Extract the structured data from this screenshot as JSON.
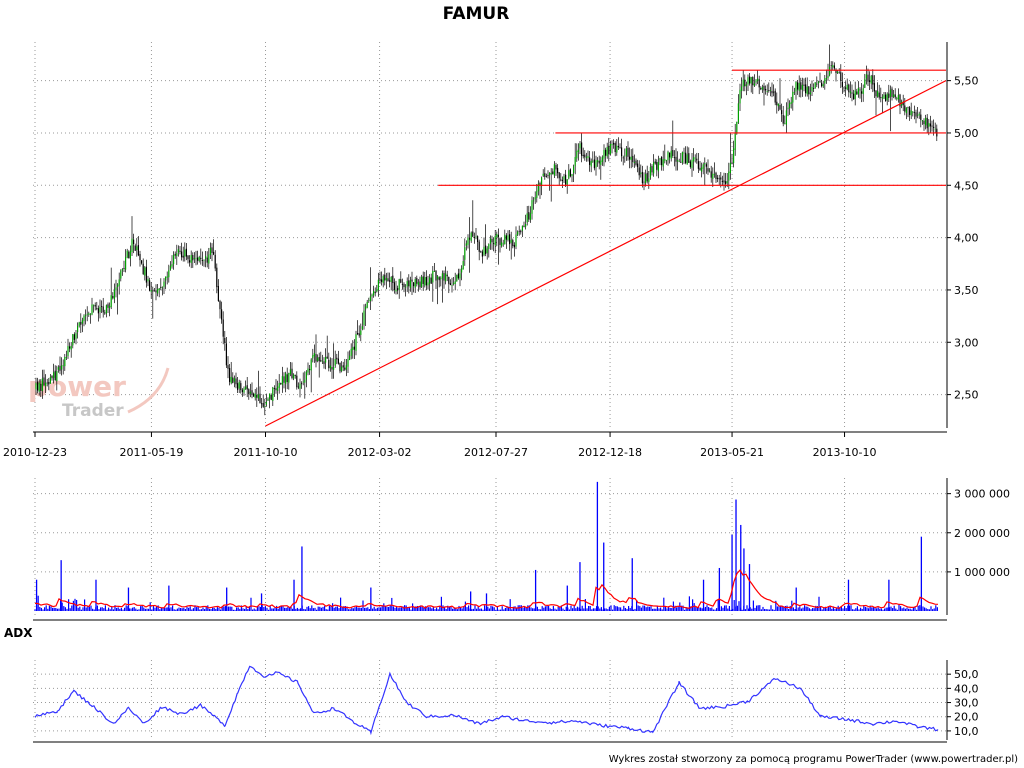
{
  "chart_data": [
    {
      "type": "candlestick",
      "title": "FAMUR",
      "xlabel": "",
      "ylabel": "",
      "x_tick_labels": [
        "2010-12-23",
        "2011-05-19",
        "2011-10-10",
        "2012-03-02",
        "2012-07-27",
        "2012-12-18",
        "2013-05-21",
        "2013-10-10"
      ],
      "y_tick_labels": [
        "2,50",
        "3,00",
        "3,50",
        "4,00",
        "4,50",
        "5,00",
        "5,50"
      ],
      "ylim": [
        2.2,
        5.85
      ],
      "grid": true,
      "price_path": [
        {
          "date": "2010-12-23",
          "close": 2.55
        },
        {
          "date": "2011-01-20",
          "close": 2.7
        },
        {
          "date": "2011-02-10",
          "close": 3.05
        },
        {
          "date": "2011-03-05",
          "close": 3.35
        },
        {
          "date": "2011-03-25",
          "close": 3.3
        },
        {
          "date": "2011-04-10",
          "close": 3.65
        },
        {
          "date": "2011-04-25",
          "close": 3.95
        },
        {
          "date": "2011-05-05",
          "close": 3.8
        },
        {
          "date": "2011-05-19",
          "close": 3.45
        },
        {
          "date": "2011-06-05",
          "close": 3.55
        },
        {
          "date": "2011-06-20",
          "close": 3.9
        },
        {
          "date": "2011-07-05",
          "close": 3.8
        },
        {
          "date": "2011-07-20",
          "close": 3.75
        },
        {
          "date": "2011-08-05",
          "close": 3.88
        },
        {
          "date": "2011-08-15",
          "close": 3.2
        },
        {
          "date": "2011-08-25",
          "close": 2.65
        },
        {
          "date": "2011-09-10",
          "close": 2.55
        },
        {
          "date": "2011-09-25",
          "close": 2.5
        },
        {
          "date": "2011-10-10",
          "close": 2.4
        },
        {
          "date": "2011-10-25",
          "close": 2.6
        },
        {
          "date": "2011-11-10",
          "close": 2.7
        },
        {
          "date": "2011-11-25",
          "close": 2.55
        },
        {
          "date": "2011-12-10",
          "close": 2.85
        },
        {
          "date": "2011-12-30",
          "close": 2.8
        },
        {
          "date": "2012-01-20",
          "close": 2.75
        },
        {
          "date": "2012-02-05",
          "close": 3.1
        },
        {
          "date": "2012-02-20",
          "close": 3.45
        },
        {
          "date": "2012-03-02",
          "close": 3.6
        },
        {
          "date": "2012-03-25",
          "close": 3.55
        },
        {
          "date": "2012-04-20",
          "close": 3.55
        },
        {
          "date": "2012-05-15",
          "close": 3.65
        },
        {
          "date": "2012-06-05",
          "close": 3.55
        },
        {
          "date": "2012-06-25",
          "close": 4.05
        },
        {
          "date": "2012-07-10",
          "close": 3.85
        },
        {
          "date": "2012-07-27",
          "close": 4.0
        },
        {
          "date": "2012-08-20",
          "close": 3.95
        },
        {
          "date": "2012-09-05",
          "close": 4.2
        },
        {
          "date": "2012-09-20",
          "close": 4.55
        },
        {
          "date": "2012-10-10",
          "close": 4.65
        },
        {
          "date": "2012-10-25",
          "close": 4.55
        },
        {
          "date": "2012-11-10",
          "close": 4.85
        },
        {
          "date": "2012-11-25",
          "close": 4.7
        },
        {
          "date": "2012-12-18",
          "close": 4.85
        },
        {
          "date": "2013-01-10",
          "close": 4.8
        },
        {
          "date": "2013-01-30",
          "close": 4.55
        },
        {
          "date": "2013-02-15",
          "close": 4.7
        },
        {
          "date": "2013-03-05",
          "close": 4.8
        },
        {
          "date": "2013-03-25",
          "close": 4.75
        },
        {
          "date": "2013-04-20",
          "close": 4.65
        },
        {
          "date": "2013-05-15",
          "close": 4.55
        },
        {
          "date": "2013-05-21",
          "close": 4.75
        },
        {
          "date": "2013-06-01",
          "close": 5.45
        },
        {
          "date": "2013-06-20",
          "close": 5.5
        },
        {
          "date": "2013-07-10",
          "close": 5.4
        },
        {
          "date": "2013-07-25",
          "close": 5.1
        },
        {
          "date": "2013-08-10",
          "close": 5.45
        },
        {
          "date": "2013-08-30",
          "close": 5.4
        },
        {
          "date": "2013-09-15",
          "close": 5.5
        },
        {
          "date": "2013-09-25",
          "close": 5.7
        },
        {
          "date": "2013-10-10",
          "close": 5.45
        },
        {
          "date": "2013-10-25",
          "close": 5.35
        },
        {
          "date": "2013-11-10",
          "close": 5.55
        },
        {
          "date": "2013-11-25",
          "close": 5.3
        },
        {
          "date": "2013-12-10",
          "close": 5.4
        },
        {
          "date": "2013-12-25",
          "close": 5.2
        },
        {
          "date": "2014-01-10",
          "close": 5.2
        },
        {
          "date": "2014-01-25",
          "close": 5.05
        },
        {
          "date": "2014-02-05",
          "close": 4.95
        }
      ],
      "horizontal_lines": [
        {
          "value": 5.6,
          "from": "2013-05-21",
          "to": "2014-02-05",
          "color": "#ff0000"
        },
        {
          "value": 5.0,
          "from": "2012-10-10",
          "to": "2014-02-05",
          "color": "#ff0000"
        },
        {
          "value": 4.5,
          "from": "2012-05-15",
          "to": "2014-02-05",
          "color": "#ff0000"
        }
      ],
      "trend_line": {
        "from": {
          "date": "2011-10-10",
          "value": 2.2
        },
        "to": {
          "date": "2014-02-05",
          "value": 5.5
        },
        "color": "#ff0000"
      },
      "colors": {
        "up": "#00a000",
        "down": "#000000",
        "levels": "#ff0000"
      }
    },
    {
      "type": "bar",
      "title": "",
      "y_tick_labels": [
        "1 000 000",
        "2 000 000",
        "3 000 000"
      ],
      "ylim": [
        0,
        3400000
      ],
      "grid": true,
      "spikes": [
        {
          "date": "2010-12-25",
          "volume": 800000
        },
        {
          "date": "2011-01-25",
          "volume": 1300000
        },
        {
          "date": "2011-03-10",
          "volume": 800000
        },
        {
          "date": "2011-04-20",
          "volume": 600000
        },
        {
          "date": "2011-06-10",
          "volume": 650000
        },
        {
          "date": "2011-08-22",
          "volume": 600000
        },
        {
          "date": "2011-10-05",
          "volume": 450000
        },
        {
          "date": "2011-11-15",
          "volume": 800000
        },
        {
          "date": "2011-11-25",
          "volume": 1650000
        },
        {
          "date": "2012-02-20",
          "volume": 600000
        },
        {
          "date": "2012-06-25",
          "volume": 500000
        },
        {
          "date": "2012-07-15",
          "volume": 450000
        },
        {
          "date": "2012-09-15",
          "volume": 1050000
        },
        {
          "date": "2012-10-25",
          "volume": 650000
        },
        {
          "date": "2012-11-10",
          "volume": 1250000
        },
        {
          "date": "2012-12-02",
          "volume": 3300000
        },
        {
          "date": "2012-12-10",
          "volume": 1750000
        },
        {
          "date": "2013-01-15",
          "volume": 1350000
        },
        {
          "date": "2013-04-15",
          "volume": 800000
        },
        {
          "date": "2013-05-05",
          "volume": 1100000
        },
        {
          "date": "2013-05-21",
          "volume": 1950000
        },
        {
          "date": "2013-05-26",
          "volume": 2850000
        },
        {
          "date": "2013-06-01",
          "volume": 2200000
        },
        {
          "date": "2013-06-05",
          "volume": 1600000
        },
        {
          "date": "2013-06-12",
          "volume": 1200000
        },
        {
          "date": "2013-08-10",
          "volume": 600000
        },
        {
          "date": "2013-10-15",
          "volume": 800000
        },
        {
          "date": "2013-12-05",
          "volume": 800000
        },
        {
          "date": "2014-01-15",
          "volume": 1900000
        }
      ],
      "average_color": "#ff0000",
      "bar_color": "#0000ff"
    },
    {
      "type": "line",
      "title": "ADX",
      "y_tick_labels": [
        "10,0",
        "20,0",
        "30,0",
        "40,0",
        "50,0"
      ],
      "ylim": [
        5,
        60
      ],
      "grid": true,
      "series": [
        {
          "name": "",
          "color": "#3333ff",
          "points": [
            {
              "date": "2010-12-23",
              "value": 20
            },
            {
              "date": "2011-01-20",
              "value": 24
            },
            {
              "date": "2011-02-10",
              "value": 38
            },
            {
              "date": "2011-03-05",
              "value": 28
            },
            {
              "date": "2011-04-01",
              "value": 15
            },
            {
              "date": "2011-04-20",
              "value": 26
            },
            {
              "date": "2011-05-10",
              "value": 15
            },
            {
              "date": "2011-06-01",
              "value": 27
            },
            {
              "date": "2011-06-25",
              "value": 22
            },
            {
              "date": "2011-07-20",
              "value": 28
            },
            {
              "date": "2011-08-20",
              "value": 14
            },
            {
              "date": "2011-09-05",
              "value": 37
            },
            {
              "date": "2011-09-20",
              "value": 56
            },
            {
              "date": "2011-10-10",
              "value": 48
            },
            {
              "date": "2011-10-25",
              "value": 51
            },
            {
              "date": "2011-11-20",
              "value": 44
            },
            {
              "date": "2011-12-10",
              "value": 22
            },
            {
              "date": "2012-01-05",
              "value": 26
            },
            {
              "date": "2012-01-30",
              "value": 16
            },
            {
              "date": "2012-02-20",
              "value": 9
            },
            {
              "date": "2012-03-15",
              "value": 50
            },
            {
              "date": "2012-04-05",
              "value": 30
            },
            {
              "date": "2012-05-01",
              "value": 20
            },
            {
              "date": "2012-06-05",
              "value": 21
            },
            {
              "date": "2012-07-05",
              "value": 15
            },
            {
              "date": "2012-08-05",
              "value": 20
            },
            {
              "date": "2012-09-05",
              "value": 17
            },
            {
              "date": "2012-10-05",
              "value": 16
            },
            {
              "date": "2012-11-05",
              "value": 17
            },
            {
              "date": "2012-12-05",
              "value": 14
            },
            {
              "date": "2013-01-10",
              "value": 12
            },
            {
              "date": "2013-02-10",
              "value": 9
            },
            {
              "date": "2013-03-15",
              "value": 44
            },
            {
              "date": "2013-04-10",
              "value": 26
            },
            {
              "date": "2013-05-10",
              "value": 27
            },
            {
              "date": "2013-06-10",
              "value": 31
            },
            {
              "date": "2013-07-15",
              "value": 47
            },
            {
              "date": "2013-08-15",
              "value": 40
            },
            {
              "date": "2013-09-10",
              "value": 20
            },
            {
              "date": "2013-10-15",
              "value": 18
            },
            {
              "date": "2013-11-15",
              "value": 15
            },
            {
              "date": "2013-12-15",
              "value": 17
            },
            {
              "date": "2014-01-10",
              "value": 13
            },
            {
              "date": "2014-02-05",
              "value": 11
            }
          ]
        }
      ]
    }
  ],
  "watermark": {
    "line1": "power",
    "line2": "Trader"
  },
  "footer": "Wykres został stworzony za pomocą programu PowerTrader (www.powertrader.pl)"
}
